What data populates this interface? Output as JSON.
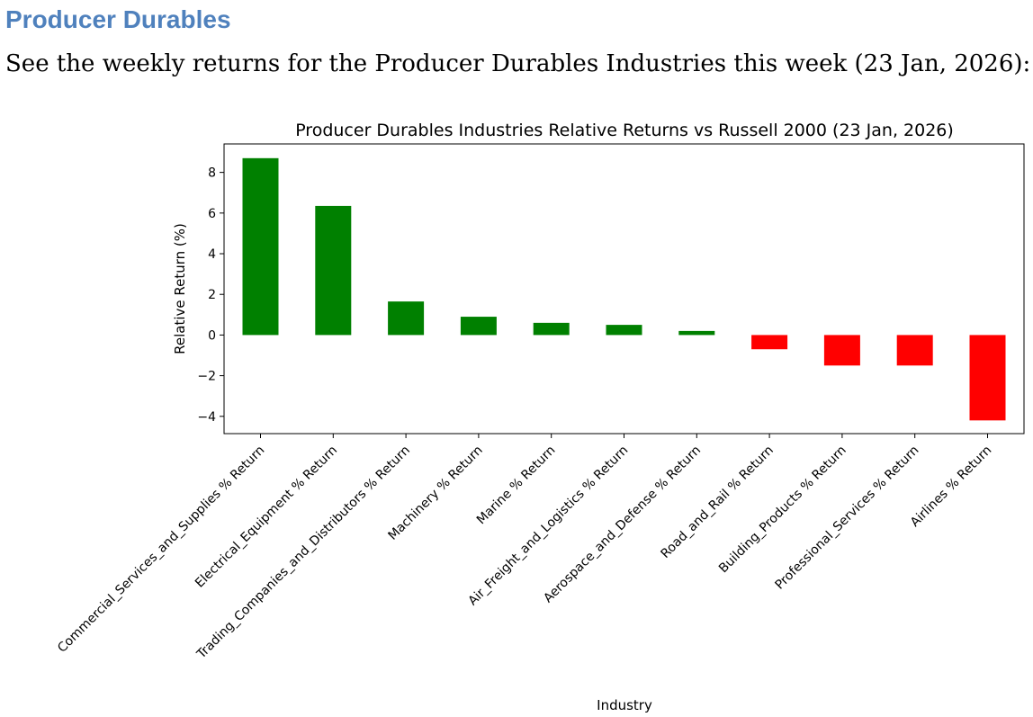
{
  "page": {
    "heading": "Producer Durables",
    "intro": "See the weekly returns for the Producer Durables Industries this week (23 Jan, 2026):"
  },
  "chart_data": {
    "type": "bar",
    "title": "Producer Durables Industries Relative Returns vs Russell 2000 (23 Jan, 2026)",
    "xlabel": "Industry",
    "ylabel": "Relative Return (%)",
    "ylim": [
      -4.85,
      9.4
    ],
    "yticks": [
      -4,
      -2,
      0,
      2,
      4,
      6,
      8
    ],
    "yticks_labels": [
      "−4",
      "−2",
      "0",
      "2",
      "4",
      "6",
      "8"
    ],
    "positive_color": "#008000",
    "negative_color": "#ff0000",
    "categories": [
      "Commercial_Services_and_Supplies % Return",
      "Electrical_Equipment % Return",
      "Trading_Companies_and_Distributors % Return",
      "Machinery % Return",
      "Marine % Return",
      "Air_Freight_and_Logistics % Return",
      "Aerospace_and_Defense % Return",
      "Road_and_Rail % Return",
      "Building_Products % Return",
      "Professional_Services % Return",
      "Airlines % Return"
    ],
    "values": [
      8.7,
      6.35,
      1.65,
      0.9,
      0.6,
      0.5,
      0.2,
      -0.7,
      -1.5,
      -1.5,
      -4.2
    ]
  }
}
